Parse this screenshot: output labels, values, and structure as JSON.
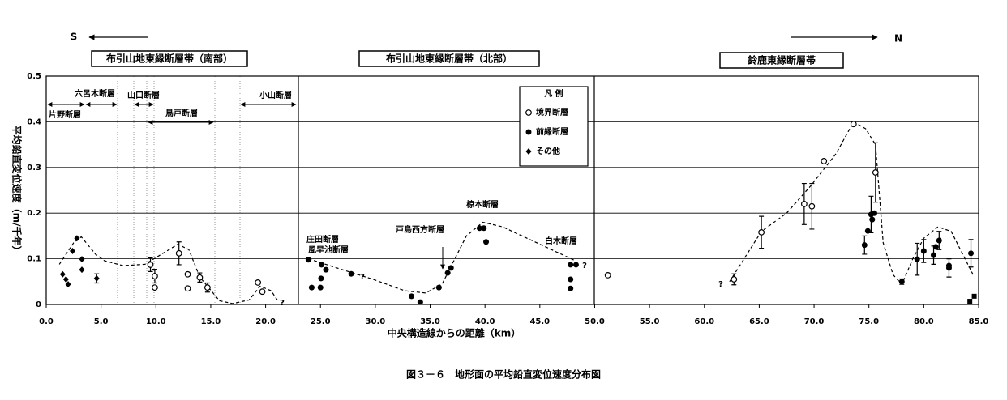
{
  "chart_data": {
    "type": "scatter",
    "caption": "図３－６　地形面の平均鉛直変位速度分布図",
    "direction_labels": [
      "S",
      "N"
    ],
    "region_titles": [
      "布引山地東縁断層帯（南部）",
      "布引山地東縁断層帯（北部）",
      "鈴鹿東縁断層帯"
    ],
    "xlabel": "中央構造線からの距離（km）",
    "ylabel": "平均鉛直変位速度（m/千年）",
    "xlim": [
      0,
      85
    ],
    "ylim": [
      0,
      0.5
    ],
    "xticks": [
      {
        "value": 0,
        "label": "0.0"
      },
      {
        "value": 5,
        "label": "5.0"
      },
      {
        "value": 10,
        "label": "10.0"
      },
      {
        "value": 15,
        "label": "15.0"
      },
      {
        "value": 20,
        "label": "20.0"
      },
      {
        "value": 25,
        "label": "25.0"
      },
      {
        "value": 30,
        "label": "30.0"
      },
      {
        "value": 35,
        "label": "35.0"
      },
      {
        "value": 40,
        "label": "40.0"
      },
      {
        "value": 45,
        "label": "45.0"
      },
      {
        "value": 50,
        "label": "50.0"
      },
      {
        "value": 55,
        "label": "55.0"
      },
      {
        "value": 60,
        "label": "60.0"
      },
      {
        "value": 65,
        "label": "65.0"
      },
      {
        "value": 70,
        "label": "70.0"
      },
      {
        "value": 75,
        "label": "75.0"
      },
      {
        "value": 80,
        "label": "80.0"
      },
      {
        "value": 85,
        "label": "85.0"
      }
    ],
    "yticks": [
      0,
      0.1,
      0.2,
      0.3,
      0.4,
      0.5
    ],
    "grid": true,
    "legend_title": "凡 例",
    "series": [
      {
        "name": "境界断層",
        "marker": "open-circle",
        "color": "#000000",
        "x": [
          9.5,
          9.9,
          9.9,
          12.1,
          12.9,
          12.9,
          14.0,
          14.7,
          19.3,
          19.7,
          51.2,
          62.7,
          65.2,
          69.1,
          69.8,
          70.9,
          73.6,
          75.6
        ],
        "values": [
          0.087,
          0.062,
          0.037,
          0.112,
          0.066,
          0.035,
          0.059,
          0.037,
          0.048,
          0.028,
          0.064,
          0.055,
          0.158,
          0.22,
          0.215,
          0.314,
          0.395,
          0.289
        ],
        "errors": [
          0.015,
          0.015,
          null,
          0.025,
          null,
          null,
          0.01,
          0.01,
          null,
          null,
          null,
          0.012,
          0.035,
          0.045,
          0.05,
          null,
          null,
          0.065
        ]
      },
      {
        "name": "前縁断層",
        "marker": "filled-circle",
        "color": "#000000",
        "x": [
          23.9,
          24.2,
          25.0,
          25.1,
          25.5,
          25.05,
          27.8,
          33.3,
          34.1,
          35.8,
          36.6,
          36.9,
          39.5,
          39.9,
          40.1,
          47.8,
          48.3,
          47.8,
          47.8,
          74.6,
          74.9,
          75.2,
          75.3,
          75.5,
          78.0,
          79.4,
          80.0,
          80.9,
          81.1,
          81.4,
          82.3,
          82.3,
          84.3
        ],
        "values": [
          0.098,
          0.037,
          0.037,
          0.087,
          0.076,
          0.057,
          0.067,
          0.018,
          0.005,
          0.037,
          0.069,
          0.08,
          0.167,
          0.167,
          0.137,
          0.087,
          0.087,
          0.055,
          0.035,
          0.13,
          0.161,
          0.197,
          0.186,
          0.2,
          0.05,
          0.099,
          0.117,
          0.108,
          0.126,
          0.14,
          0.08,
          0.085,
          0.112
        ],
        "errors": [
          null,
          null,
          null,
          null,
          null,
          null,
          null,
          null,
          null,
          null,
          null,
          null,
          null,
          null,
          null,
          null,
          null,
          null,
          null,
          0.02,
          null,
          0.04,
          null,
          null,
          0.006,
          0.035,
          0.025,
          0.02,
          null,
          0.02,
          0.02,
          null,
          0.03
        ]
      },
      {
        "name": "その他",
        "marker": "diamond",
        "color": "#000000",
        "x": [
          1.5,
          1.8,
          2.0,
          2.4,
          2.8,
          3.25,
          3.25,
          4.6
        ],
        "values": [
          0.066,
          0.055,
          0.044,
          0.117,
          0.145,
          0.099,
          0.076,
          0.057
        ],
        "errors": [
          null,
          null,
          null,
          null,
          null,
          null,
          null,
          0.01
        ]
      },
      {
        "marker": "square",
        "color": "#000000",
        "x": [
          84.2,
          84.6
        ],
        "values": [
          0.007,
          0.018
        ]
      }
    ],
    "curve": {
      "style": "dashed",
      "color": "#000000",
      "x": [
        1.2,
        2.5,
        3.2,
        4.5,
        5.3,
        7,
        9,
        10.5,
        12,
        13,
        14,
        15.8,
        17,
        18.5,
        19.5,
        20.5,
        21.2,
        null,
        23.9,
        27.8,
        29.8,
        32.7,
        34.6,
        36.1,
        38.3,
        39.8,
        41.6,
        48.3,
        null,
        62.3,
        65.2,
        67.5,
        69.7,
        72,
        73.6,
        74.7,
        75.6,
        76.3,
        77.2,
        78,
        79,
        80,
        81.3,
        82.5,
        84.5
      ],
      "values": [
        0.088,
        0.135,
        0.148,
        0.11,
        0.096,
        0.085,
        0.088,
        0.11,
        0.132,
        0.12,
        0.06,
        0.008,
        0.002,
        0.01,
        0.04,
        0.03,
        0.005,
        null,
        0.1,
        0.07,
        0.055,
        0.03,
        0.025,
        0.045,
        0.15,
        0.18,
        0.17,
        0.095,
        null,
        0.05,
        0.16,
        0.2,
        0.26,
        0.33,
        0.4,
        0.385,
        0.35,
        0.135,
        0.065,
        0.044,
        0.1,
        0.145,
        0.17,
        0.16,
        0.065
      ]
    },
    "annotations": [
      "六呂木断層",
      "片野断層",
      "山口断層",
      "鳥戸断層",
      "小山断層",
      "庄田断層",
      "風早池断層",
      "戸島西方断層",
      "椋本断層",
      "白木断層",
      "?",
      "?",
      "?",
      "?"
    ]
  }
}
